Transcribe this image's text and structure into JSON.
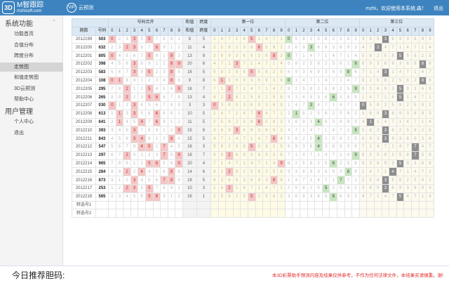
{
  "header": {
    "logo_mark": "3D",
    "logo_title": "M智跟踪",
    "logo_sub": "mzhisoft.com",
    "pred_icon": "VIP",
    "pred_label": "云预测",
    "welcome": "mzhi，欢迎使用本系统,森！",
    "logout": "退出"
  },
  "sidebar": {
    "section1": "系统功能",
    "items1": [
      "功能首页",
      "合值分布",
      "跨度分布",
      "走势图",
      "和值走势图",
      "3D云预测",
      "帮助中心"
    ],
    "active_index": 3,
    "section2": "用户管理",
    "items2": [
      "个人中心",
      "退出"
    ]
  },
  "table": {
    "group_headers": {
      "numbers": "号码合开",
      "sum": "和值",
      "span": "跨度",
      "d1": "第一位",
      "d2": "第二位",
      "d3": "第三位"
    },
    "issue_header": "期数",
    "code_header": "号码",
    "digits": [
      "0",
      "1",
      "2",
      "3",
      "4",
      "5",
      "6",
      "7",
      "8",
      "9"
    ],
    "rows": [
      {
        "issue": "2012199",
        "code": "503",
        "sum": "8",
        "span": "5"
      },
      {
        "issue": "2012200",
        "code": "632",
        "sum": "11",
        "span": "4"
      },
      {
        "issue": "2012201",
        "code": "805",
        "sum": "13",
        "span": "8"
      },
      {
        "issue": "2012202",
        "code": "398",
        "sum": "20",
        "span": "6"
      },
      {
        "issue": "2012203",
        "code": "583",
        "sum": "16",
        "span": "5"
      },
      {
        "issue": "2012204",
        "code": "108",
        "sum": "9",
        "span": "8"
      },
      {
        "issue": "2012205",
        "code": "295",
        "sum": "16",
        "span": "7"
      },
      {
        "issue": "2012206",
        "code": "265",
        "sum": "13",
        "span": "4"
      },
      {
        "issue": "2012207",
        "code": "030",
        "sum": "3",
        "span": "3"
      },
      {
        "issue": "2012208",
        "code": "613",
        "sum": "10",
        "span": "5"
      },
      {
        "issue": "2012209",
        "code": "641",
        "sum": "11",
        "span": "5"
      },
      {
        "issue": "2012210",
        "code": "393",
        "sum": "15",
        "span": "6"
      },
      {
        "issue": "2012211",
        "code": "843",
        "sum": "15",
        "span": "5"
      },
      {
        "issue": "2012212",
        "code": "547",
        "sum": "16",
        "span": "3"
      },
      {
        "issue": "2012213",
        "code": "297",
        "sum": "18",
        "span": "7"
      },
      {
        "issue": "2012214",
        "code": "965",
        "sum": "20",
        "span": "4"
      },
      {
        "issue": "2012215",
        "code": "284",
        "sum": "14",
        "span": "6"
      },
      {
        "issue": "2012216",
        "code": "873",
        "sum": "18",
        "span": "5"
      },
      {
        "issue": "2012217",
        "code": "253",
        "sum": "10",
        "span": "3"
      },
      {
        "issue": "2012218",
        "code": "565",
        "sum": "16",
        "span": "1"
      }
    ],
    "extra_rows": [
      "转选号1",
      "转选号2"
    ]
  },
  "bottom": {
    "title": "今日推荐胆码:",
    "disclaimer": "本3D彩票助手预测内容及结果仅供参考，不作为任何法律文件，本结果买请慎重。谢!"
  },
  "colors": {
    "header_bg": "#3d83bf",
    "hit_red": "#f5c6c6",
    "hit_green": "#c8e6c0",
    "hit_dark": "#8e8e8e",
    "zone1": "#fffbe5"
  },
  "icons": {
    "logo": "3d-logo-icon",
    "predict": "vip-icon",
    "collapse": "chevron-up-icon"
  }
}
